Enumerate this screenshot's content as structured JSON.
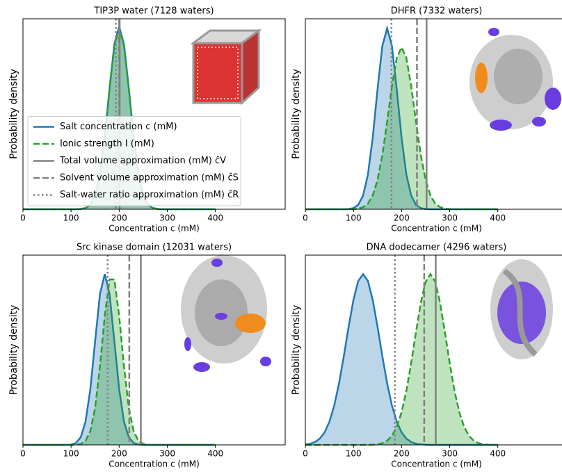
{
  "chart_data": [
    {
      "type": "density",
      "title": "TIP3P water (7128 waters)",
      "xlabel": "Concentration c (mM)",
      "ylabel": "Probability density",
      "xlim": [
        0,
        545
      ],
      "xticks": [
        0,
        100,
        200,
        300,
        400
      ],
      "ylim": [
        0,
        1
      ],
      "legend": "lower left",
      "x": [
        0,
        10,
        20,
        30,
        40,
        50,
        60,
        70,
        80,
        90,
        100,
        110,
        120,
        130,
        140,
        150,
        160,
        170,
        180,
        190,
        200,
        210,
        220,
        230,
        240,
        250,
        260,
        270,
        280,
        290,
        300,
        310,
        320,
        330,
        340,
        350,
        360,
        370,
        380,
        390,
        400
      ],
      "series": [
        {
          "name": "Salt concentration c (mM)",
          "color": "#1f77b4",
          "style": "solid",
          "values": [
            0,
            0,
            0,
            0,
            0,
            0,
            0,
            0,
            0,
            0,
            0,
            0,
            0.001,
            0.006,
            0.023,
            0.073,
            0.184,
            0.379,
            0.635,
            0.866,
            0.96,
            0.866,
            0.635,
            0.379,
            0.184,
            0.073,
            0.023,
            0.006,
            0.001,
            0,
            0,
            0,
            0,
            0,
            0,
            0,
            0,
            0,
            0,
            0,
            0
          ]
        },
        {
          "name": "Ionic strength I (mM)",
          "color": "#2ca02c",
          "style": "dashed",
          "values": [
            0,
            0,
            0,
            0,
            0,
            0,
            0,
            0,
            0,
            0,
            0,
            0,
            0.002,
            0.007,
            0.025,
            0.076,
            0.188,
            0.381,
            0.632,
            0.859,
            0.95,
            0.859,
            0.632,
            0.381,
            0.188,
            0.076,
            0.025,
            0.007,
            0.002,
            0,
            0,
            0,
            0,
            0,
            0,
            0,
            0,
            0,
            0,
            0,
            0
          ]
        }
      ],
      "vlines": [
        {
          "name": "Total volume approximation (mM) ĉV",
          "color": "#808080",
          "style": "solid",
          "value": 201
        },
        {
          "name": "Solvent volume approximation (mM) ĉS",
          "color": "#808080",
          "style": "dashed",
          "value": 200
        },
        {
          "name": "Salt-water ratio approximation (mM) ĉR",
          "color": "#808080",
          "style": "dotted",
          "value": 193
        }
      ]
    },
    {
      "type": "density",
      "title": "DHFR (7332 waters)",
      "xlabel": "Concentration c (mM)",
      "ylabel": "Probability density",
      "xlim": [
        0,
        545
      ],
      "xticks": [
        0,
        100,
        200,
        300,
        400
      ],
      "ylim": [
        0,
        1
      ],
      "x": [
        0,
        10,
        20,
        30,
        40,
        50,
        60,
        70,
        80,
        90,
        100,
        110,
        120,
        130,
        140,
        150,
        160,
        170,
        180,
        190,
        200,
        210,
        220,
        230,
        240,
        250,
        260,
        270,
        280,
        290,
        300,
        310,
        320,
        330,
        340,
        350,
        360,
        370,
        380,
        390,
        400
      ],
      "series": [
        {
          "color": "#1f77b4",
          "style": "solid",
          "values": [
            0,
            0,
            0,
            0,
            0,
            0,
            0,
            0,
            0,
            0.001,
            0.006,
            0.023,
            0.072,
            0.181,
            0.375,
            0.629,
            0.857,
            0.95,
            0.857,
            0.629,
            0.375,
            0.181,
            0.072,
            0.023,
            0.006,
            0.001,
            0,
            0,
            0,
            0,
            0,
            0,
            0,
            0,
            0,
            0,
            0,
            0,
            0,
            0,
            0
          ]
        },
        {
          "color": "#2ca02c",
          "style": "dashed",
          "values": [
            0,
            0,
            0,
            0,
            0,
            0,
            0,
            0,
            0,
            0,
            0.001,
            0.003,
            0.011,
            0.029,
            0.072,
            0.153,
            0.284,
            0.459,
            0.646,
            0.794,
            0.85,
            0.794,
            0.646,
            0.459,
            0.284,
            0.153,
            0.072,
            0.029,
            0.011,
            0.003,
            0.001,
            0,
            0,
            0,
            0,
            0,
            0,
            0,
            0,
            0,
            0
          ]
        }
      ],
      "vlines": [
        {
          "color": "#808080",
          "style": "solid",
          "value": 252
        },
        {
          "color": "#808080",
          "style": "dashed",
          "value": 232
        },
        {
          "color": "#808080",
          "style": "dotted",
          "value": 179
        }
      ]
    },
    {
      "type": "density",
      "title": "Src kinase domain (12031 waters)",
      "xlabel": "Concentration c (mM)",
      "ylabel": "Probability density",
      "xlim": [
        0,
        545
      ],
      "xticks": [
        0,
        100,
        200,
        300,
        400
      ],
      "ylim": [
        0,
        1
      ],
      "x": [
        0,
        10,
        20,
        30,
        40,
        50,
        60,
        70,
        80,
        90,
        100,
        110,
        120,
        130,
        140,
        150,
        160,
        170,
        180,
        190,
        200,
        210,
        220,
        230,
        240,
        250,
        260,
        270,
        280,
        290,
        300,
        310,
        320,
        330,
        340,
        350,
        360,
        370,
        380,
        390,
        400
      ],
      "series": [
        {
          "color": "#1f77b4",
          "style": "solid",
          "values": [
            0,
            0,
            0,
            0,
            0,
            0,
            0,
            0,
            0,
            0,
            0.002,
            0.01,
            0.04,
            0.122,
            0.292,
            0.546,
            0.794,
            0.9,
            0.794,
            0.546,
            0.292,
            0.122,
            0.04,
            0.01,
            0.002,
            0,
            0,
            0,
            0,
            0,
            0,
            0,
            0,
            0,
            0,
            0,
            0,
            0,
            0,
            0,
            0
          ]
        },
        {
          "color": "#2ca02c",
          "style": "dashed",
          "values": [
            0,
            0,
            0,
            0,
            0,
            0,
            0,
            0,
            0,
            0,
            0,
            0.001,
            0.005,
            0.021,
            0.072,
            0.195,
            0.412,
            0.679,
            0.872,
            0.872,
            0.679,
            0.412,
            0.195,
            0.072,
            0.021,
            0.005,
            0.001,
            0,
            0,
            0,
            0,
            0,
            0,
            0,
            0,
            0,
            0,
            0,
            0,
            0,
            0
          ]
        }
      ],
      "vlines": [
        {
          "color": "#808080",
          "style": "solid",
          "value": 245
        },
        {
          "color": "#808080",
          "style": "dashed",
          "value": 221
        },
        {
          "color": "#808080",
          "style": "dotted",
          "value": 176
        }
      ]
    },
    {
      "type": "density",
      "title": "DNA dodecamer (4296 waters)",
      "xlabel": "Concentration c (mM)",
      "ylabel": "Probability density",
      "xlim": [
        0,
        545
      ],
      "xticks": [
        0,
        100,
        200,
        300,
        400
      ],
      "ylim": [
        0,
        1
      ],
      "x": [
        0,
        10,
        20,
        30,
        40,
        50,
        60,
        70,
        80,
        90,
        100,
        110,
        120,
        130,
        140,
        150,
        160,
        170,
        180,
        190,
        200,
        210,
        220,
        230,
        240,
        250,
        260,
        270,
        280,
        290,
        300,
        310,
        320,
        330,
        340,
        350,
        360,
        370,
        380,
        390,
        400
      ],
      "series": [
        {
          "color": "#1f77b4",
          "style": "solid",
          "values": [
            0.003,
            0.006,
            0.015,
            0.033,
            0.066,
            0.122,
            0.207,
            0.324,
            0.468,
            0.623,
            0.764,
            0.864,
            0.9,
            0.864,
            0.764,
            0.623,
            0.468,
            0.324,
            0.207,
            0.122,
            0.066,
            0.033,
            0.015,
            0.006,
            0.003,
            0.001,
            0,
            0,
            0,
            0,
            0,
            0,
            0,
            0,
            0,
            0,
            0,
            0,
            0,
            0,
            0
          ]
        },
        {
          "color": "#2ca02c",
          "style": "dashed",
          "values": [
            0,
            0,
            0,
            0,
            0,
            0,
            0,
            0,
            0,
            0,
            0,
            0,
            0,
            0,
            0.001,
            0.003,
            0.009,
            0.022,
            0.048,
            0.095,
            0.172,
            0.285,
            0.432,
            0.595,
            0.749,
            0.86,
            0.9,
            0.86,
            0.749,
            0.595,
            0.432,
            0.285,
            0.172,
            0.095,
            0.048,
            0.022,
            0.009,
            0.003,
            0.001,
            0,
            0
          ]
        }
      ],
      "vlines": [
        {
          "color": "#808080",
          "style": "solid",
          "value": 271
        },
        {
          "color": "#808080",
          "style": "dashed",
          "value": 247
        },
        {
          "color": "#808080",
          "style": "dotted",
          "value": 186
        }
      ]
    }
  ]
}
